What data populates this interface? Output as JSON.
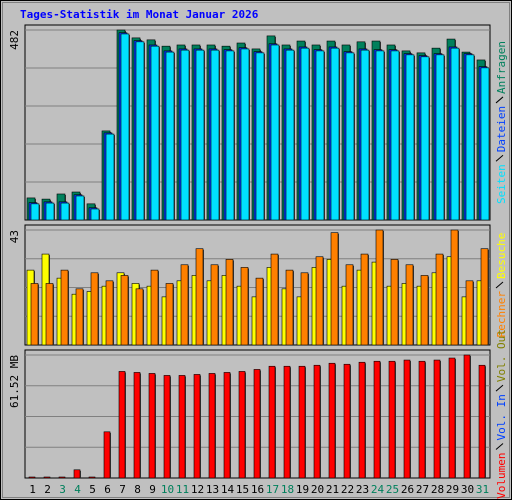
{
  "title": "Tages-Statistik im Monat Januar 2026",
  "chart_data": [
    {
      "type": "bar",
      "ylim": [
        0,
        482
      ],
      "yticks": [
        482
      ],
      "series": [
        {
          "name": "Anfragen",
          "color": "#00805c",
          "values": [
            56,
            53,
            66,
            71,
            41,
            226,
            482,
            462,
            457,
            441,
            444,
            444,
            444,
            441,
            449,
            434,
            467,
            444,
            454,
            444,
            454,
            444,
            452,
            454,
            444,
            429,
            424,
            436,
            459,
            426,
            406
          ]
        },
        {
          "name": "Dateien",
          "color": "#0040ff",
          "values": [
            44,
            46,
            46,
            64,
            31,
            221,
            475,
            455,
            444,
            429,
            434,
            434,
            434,
            432,
            437,
            427,
            447,
            434,
            439,
            432,
            439,
            427,
            434,
            432,
            432,
            422,
            417,
            422,
            439,
            422,
            389
          ]
        },
        {
          "name": "Seiten",
          "color": "#00e0ff",
          "values": [
            41,
            43,
            43,
            61,
            28,
            218,
            472,
            452,
            441,
            426,
            431,
            431,
            431,
            429,
            434,
            424,
            444,
            431,
            436,
            429,
            436,
            424,
            431,
            429,
            429,
            419,
            414,
            419,
            436,
            419,
            386
          ]
        }
      ]
    },
    {
      "type": "bar",
      "ylim": [
        0,
        43
      ],
      "yticks": [
        43
      ],
      "series": [
        {
          "name": "Besuche",
          "color": "#ffff00",
          "values": [
            28,
            34,
            25,
            19,
            20,
            22,
            27,
            23,
            22,
            18,
            24,
            26,
            24,
            26,
            22,
            18,
            29,
            21,
            18,
            29,
            32,
            22,
            28,
            31,
            22,
            23,
            22,
            27,
            33,
            18,
            24
          ]
        },
        {
          "name": "Rechner",
          "color": "#ff8000",
          "values": [
            23,
            23,
            28,
            21,
            27,
            24,
            26,
            21,
            28,
            23,
            30,
            36,
            30,
            32,
            29,
            25,
            34,
            28,
            27,
            33,
            42,
            30,
            34,
            43,
            32,
            30,
            26,
            34,
            43,
            24,
            36
          ]
        }
      ]
    },
    {
      "type": "bar",
      "ylim": [
        0,
        61.52
      ],
      "yticks": [
        {
          "value": 61.52,
          "label": "61.52 MB"
        }
      ],
      "categories": [
        "1",
        "2",
        "3",
        "4",
        "5",
        "6",
        "7",
        "8",
        "9",
        "10",
        "11",
        "12",
        "13",
        "14",
        "15",
        "16",
        "17",
        "18",
        "19",
        "20",
        "21",
        "22",
        "23",
        "24",
        "25",
        "26",
        "27",
        "28",
        "29",
        "30",
        "31"
      ],
      "category_colors": [
        "#000000",
        "#000000",
        "#00805c",
        "#00805c",
        "#000000",
        "#000000",
        "#000000",
        "#000000",
        "#000000",
        "#00805c",
        "#00805c",
        "#000000",
        "#000000",
        "#000000",
        "#000000",
        "#000000",
        "#00805c",
        "#00805c",
        "#000000",
        "#000000",
        "#000000",
        "#000000",
        "#000000",
        "#00805c",
        "#00805c",
        "#000000",
        "#000000",
        "#000000",
        "#000000",
        "#000000",
        "#00805c"
      ],
      "series": [
        {
          "name": "Vol. Out",
          "color": "#808000"
        },
        {
          "name": "Vol. In",
          "color": "#0040ff"
        },
        {
          "name": "Volumen",
          "color": "#ff0000",
          "values": [
            0.5,
            0.5,
            0.5,
            4.1,
            0.5,
            23.1,
            53.3,
            52.8,
            52.3,
            51.3,
            51.3,
            51.8,
            52.3,
            52.8,
            53.3,
            54.3,
            55.9,
            55.9,
            55.9,
            56.4,
            57.4,
            56.9,
            57.9,
            58.4,
            58.4,
            59.0,
            58.4,
            59.0,
            60.0,
            61.52,
            56.4
          ]
        }
      ]
    }
  ]
}
